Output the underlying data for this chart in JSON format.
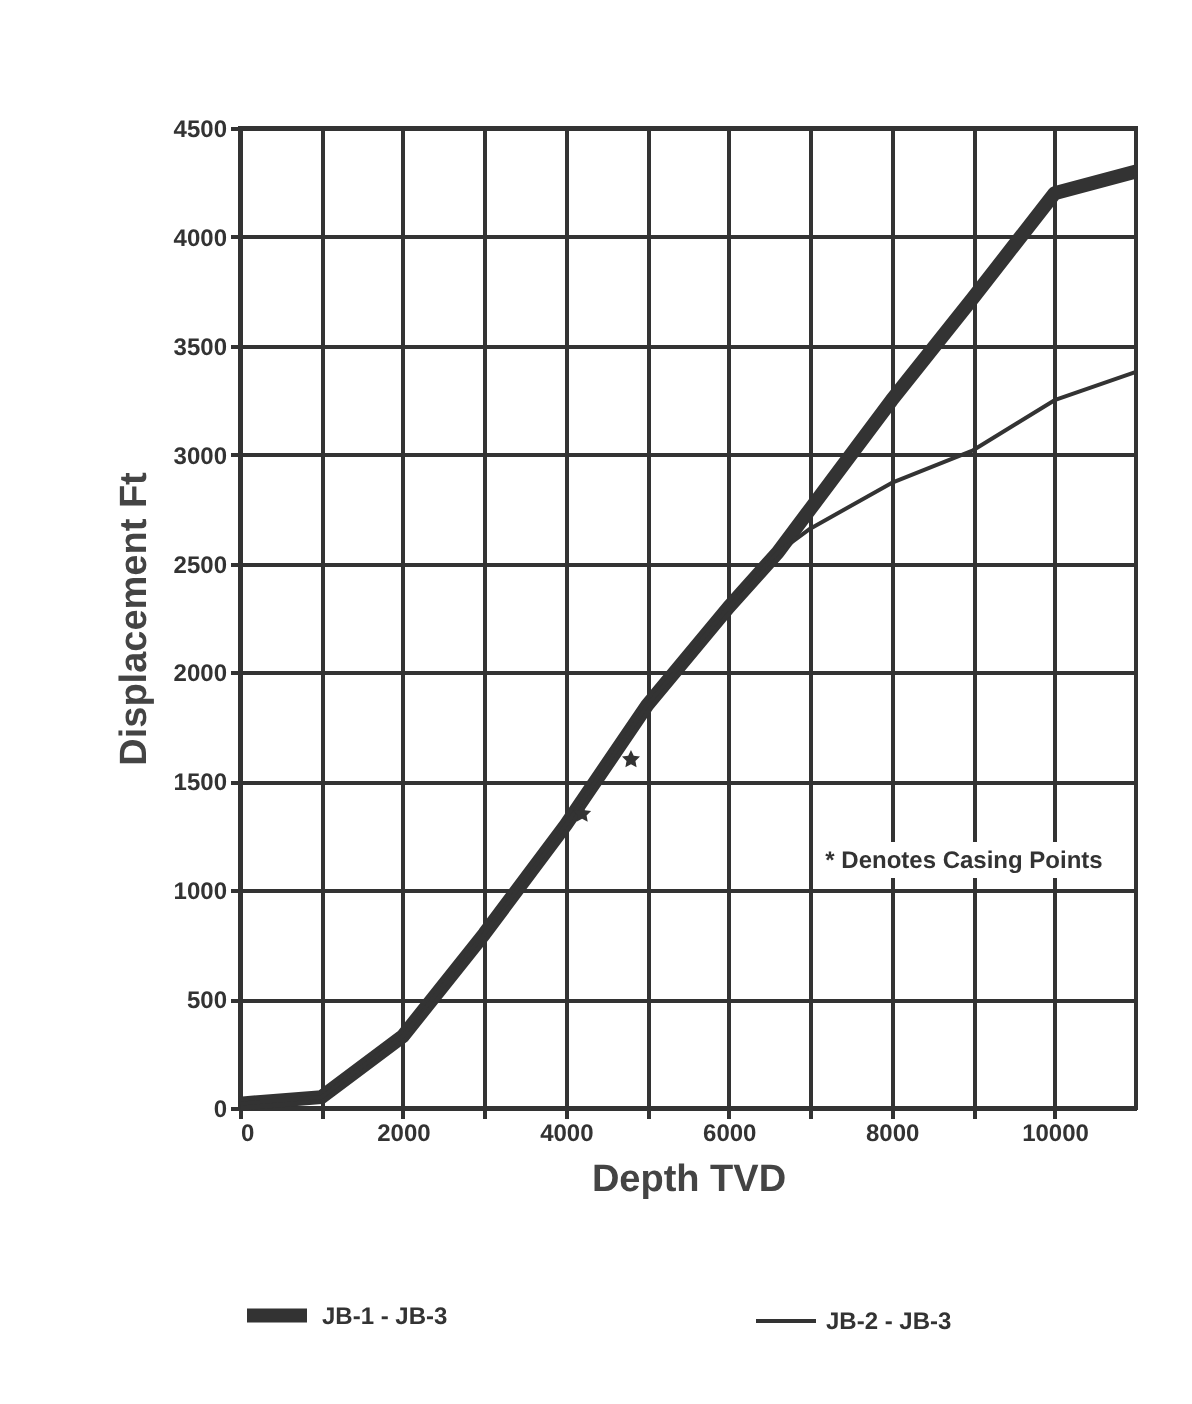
{
  "chart_data": {
    "type": "line",
    "xlabel": "Depth TVD",
    "ylabel": "Displacement Ft",
    "x": [
      0,
      1000,
      2000,
      3000,
      4000,
      5000,
      6000,
      6600,
      7000,
      8000,
      9000,
      10000,
      11000
    ],
    "series": [
      {
        "name": "JB-1 - JB-3",
        "color": "#333333",
        "values": [
          20,
          50,
          330,
          800,
          1300,
          1850,
          2300,
          2550,
          2750,
          3250,
          3720,
          4200,
          4300
        ]
      },
      {
        "name": "JB-2 - JB-3",
        "color": "#333333",
        "values": [
          20,
          50,
          330,
          800,
          1300,
          1850,
          2300,
          2550,
          2660,
          2870,
          3020,
          3250,
          3380
        ]
      },
      {
        "type": "scatter",
        "marker": "star",
        "color": "#333333",
        "x": [
          4200,
          4800
        ],
        "values": [
          1350,
          1600
        ]
      }
    ],
    "xlim": [
      0,
      11000
    ],
    "ylim": [
      0,
      4500
    ],
    "xticks": [
      0,
      {
        "value": 1000,
        "label": null
      },
      2000,
      {
        "value": 3000,
        "label": null
      },
      4000,
      {
        "value": 5000,
        "label": null
      },
      6000,
      {
        "value": 7000,
        "label": null
      },
      8000,
      {
        "value": 9000,
        "label": null
      },
      10000
    ],
    "yticks": [
      0,
      500,
      1000,
      1500,
      2000,
      2500,
      3000,
      3500,
      4000,
      4500
    ],
    "grid": true,
    "legend": "bottom",
    "annotations": [
      "* Denotes Casing Points"
    ]
  }
}
